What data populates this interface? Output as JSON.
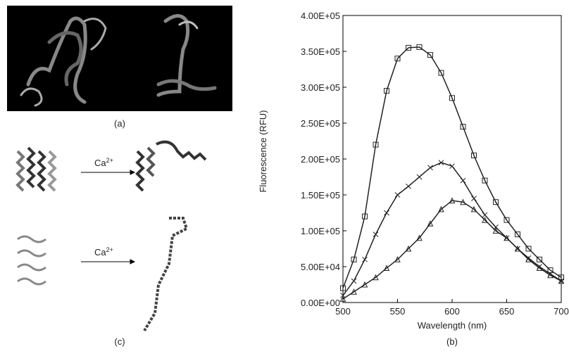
{
  "chart_data": {
    "type": "line",
    "xlabel": "Wavelength (nm)",
    "ylabel": "Fluorescence (RFU)",
    "panel_label": "(b)",
    "x": [
      500,
      510,
      520,
      530,
      540,
      550,
      560,
      570,
      580,
      590,
      600,
      610,
      620,
      630,
      640,
      650,
      660,
      670,
      680,
      690,
      700
    ],
    "series": [
      {
        "color": "#222222",
        "marker": "square",
        "values": [
          20000,
          60000,
          120000,
          220000,
          295000,
          340000,
          355000,
          356000,
          345000,
          320000,
          285000,
          245000,
          205000,
          170000,
          140000,
          115000,
          95000,
          75000,
          60000,
          45000,
          35000
        ]
      },
      {
        "color": "#222222",
        "marker": "x",
        "values": [
          10000,
          30000,
          60000,
          95000,
          125000,
          150000,
          162000,
          175000,
          188000,
          195000,
          190000,
          170000,
          145000,
          122000,
          105000,
          90000,
          75000,
          62000,
          50000,
          40000,
          30000
        ]
      },
      {
        "color": "#222222",
        "marker": "triangle",
        "values": [
          5000,
          15000,
          25000,
          35000,
          48000,
          60000,
          75000,
          90000,
          110000,
          130000,
          142000,
          140000,
          130000,
          115000,
          100000,
          90000,
          75000,
          60000,
          48000,
          38000,
          30000
        ]
      }
    ],
    "xlim": [
      500,
      700
    ],
    "xticks": [
      500,
      550,
      600,
      650,
      700
    ],
    "ylim": [
      0,
      400000
    ],
    "yticks": [
      {
        "value": 0,
        "label": "0.00E+00"
      },
      {
        "value": 50000,
        "label": "5.00E+04"
      },
      {
        "value": 100000,
        "label": "1.00E+05"
      },
      {
        "value": 150000,
        "label": "1.50E+05"
      },
      {
        "value": 200000,
        "label": "2.00E+05"
      },
      {
        "value": 250000,
        "label": "2.50E+05"
      },
      {
        "value": 300000,
        "label": "3.00E+05"
      },
      {
        "value": 350000,
        "label": "3.50E+05"
      },
      {
        "value": 400000,
        "label": "4.00E+05"
      }
    ]
  },
  "panels": {
    "a": "(a)",
    "c": "(c)",
    "arrow_top": {
      "base": "Ca",
      "sup": "2+"
    },
    "arrow_bottom": {
      "base": "Ca",
      "sup": "2+"
    }
  }
}
